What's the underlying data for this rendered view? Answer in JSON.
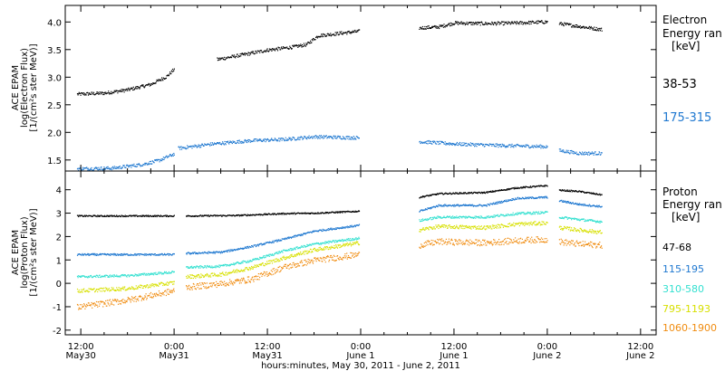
{
  "chart_data": [
    {
      "type": "scatter",
      "panel": "electron",
      "ylabel": [
        "ACE EPAM",
        "log(Electron Flux)",
        "[1/(cm²s ster MeV)]"
      ],
      "ylim": [
        1.3,
        4.3
      ],
      "yticks": [
        "1.5",
        "2.0",
        "2.5",
        "3.0",
        "3.5",
        "4.0"
      ],
      "ytick_values": [
        1.5,
        2.0,
        2.5,
        3.0,
        3.5,
        4.0
      ],
      "legend_title": [
        "Electron",
        "Energy ran",
        "[keV]"
      ],
      "grid": false,
      "legend_position": "right",
      "series": [
        {
          "name": "38-53",
          "color": "#000000",
          "noise": 0.03,
          "segments": [
            [
              [
                -12.5,
                2.7
              ],
              [
                -9,
                2.72
              ],
              [
                -6,
                2.78
              ],
              [
                -3,
                2.88
              ],
              [
                -1,
                3.02
              ],
              [
                0,
                3.16
              ]
            ],
            [
              [
                5.5,
                3.33
              ],
              [
                9,
                3.42
              ],
              [
                12,
                3.5
              ],
              [
                15,
                3.55
              ],
              [
                17,
                3.6
              ],
              [
                18.5,
                3.76
              ],
              [
                21,
                3.8
              ],
              [
                23.8,
                3.84
              ]
            ],
            [
              [
                31.5,
                3.9
              ],
              [
                34,
                3.92
              ],
              [
                36,
                3.99
              ],
              [
                40,
                3.98
              ],
              [
                44,
                3.99
              ],
              [
                48,
                4.01
              ]
            ],
            [
              [
                49.5,
                3.98
              ],
              [
                52,
                3.93
              ],
              [
                55,
                3.87
              ]
            ]
          ]
        },
        {
          "name": "175-315",
          "color": "#1f78d0",
          "noise": 0.03,
          "segments": [
            [
              [
                -12.5,
                1.35
              ],
              [
                -8,
                1.36
              ],
              [
                -4,
                1.43
              ],
              [
                -2,
                1.5
              ],
              [
                0,
                1.62
              ]
            ],
            [
              [
                0.5,
                1.72
              ],
              [
                5,
                1.8
              ],
              [
                10,
                1.86
              ],
              [
                14,
                1.88
              ],
              [
                18,
                1.93
              ],
              [
                23.8,
                1.91
              ]
            ],
            [
              [
                31.5,
                1.84
              ],
              [
                36,
                1.8
              ],
              [
                42,
                1.77
              ],
              [
                48,
                1.75
              ]
            ],
            [
              [
                49.5,
                1.68
              ],
              [
                52,
                1.63
              ],
              [
                55,
                1.63
              ]
            ]
          ]
        }
      ]
    },
    {
      "type": "scatter",
      "panel": "proton",
      "ylabel": [
        "ACE EPAM",
        "log(Proton Flux)",
        "[1/(cm²s ster MeV)]"
      ],
      "ylim": [
        -2.2,
        4.8
      ],
      "yticks": [
        "-2",
        "-1",
        "0",
        "1",
        "2",
        "3",
        "4"
      ],
      "ytick_values": [
        -2,
        -1,
        0,
        1,
        2,
        3,
        4
      ],
      "legend_title": [
        "Proton",
        "Energy ran",
        "[keV]"
      ],
      "grid": false,
      "legend_position": "right",
      "series": [
        {
          "name": "47-68",
          "color": "#000000",
          "noise": 0.03,
          "segments": [
            [
              [
                -12.5,
                2.9
              ],
              [
                0,
                2.9
              ]
            ],
            [
              [
                1.5,
                2.9
              ],
              [
                8,
                2.92
              ],
              [
                14,
                3.0
              ],
              [
                18,
                3.02
              ],
              [
                23.8,
                3.1
              ]
            ],
            [
              [
                31.5,
                3.7
              ],
              [
                34,
                3.85
              ],
              [
                40,
                3.9
              ],
              [
                44,
                4.1
              ],
              [
                48,
                4.2
              ]
            ],
            [
              [
                49.5,
                4.0
              ],
              [
                52,
                3.95
              ],
              [
                55,
                3.8
              ]
            ]
          ]
        },
        {
          "name": "115-195",
          "color": "#1f78d0",
          "noise": 0.04,
          "segments": [
            [
              [
                -12.5,
                1.25
              ],
              [
                0,
                1.25
              ]
            ],
            [
              [
                1.5,
                1.3
              ],
              [
                6,
                1.35
              ],
              [
                10,
                1.6
              ],
              [
                14,
                1.9
              ],
              [
                18,
                2.25
              ],
              [
                23.8,
                2.5
              ]
            ],
            [
              [
                31.5,
                3.1
              ],
              [
                34,
                3.35
              ],
              [
                40,
                3.35
              ],
              [
                44,
                3.65
              ],
              [
                48,
                3.7
              ]
            ],
            [
              [
                49.5,
                3.55
              ],
              [
                52,
                3.4
              ],
              [
                55,
                3.3
              ]
            ]
          ]
        },
        {
          "name": "310-580",
          "color": "#33e0d0",
          "noise": 0.05,
          "segments": [
            [
              [
                -12.5,
                0.3
              ],
              [
                -6,
                0.35
              ],
              [
                0,
                0.5
              ]
            ],
            [
              [
                1.5,
                0.7
              ],
              [
                6,
                0.75
              ],
              [
                10,
                1.0
              ],
              [
                14,
                1.4
              ],
              [
                18,
                1.7
              ],
              [
                23.8,
                1.95
              ]
            ],
            [
              [
                31.5,
                2.7
              ],
              [
                34,
                2.85
              ],
              [
                40,
                2.85
              ],
              [
                44,
                3.0
              ],
              [
                48,
                3.05
              ]
            ],
            [
              [
                49.5,
                2.85
              ],
              [
                52,
                2.75
              ],
              [
                55,
                2.65
              ]
            ]
          ]
        },
        {
          "name": "795-1193",
          "color": "#d7e000",
          "noise": 0.08,
          "segments": [
            [
              [
                -12.5,
                -0.3
              ],
              [
                -6,
                -0.2
              ],
              [
                0,
                0.05
              ]
            ],
            [
              [
                1.5,
                0.3
              ],
              [
                6,
                0.4
              ],
              [
                10,
                0.7
              ],
              [
                14,
                1.1
              ],
              [
                18,
                1.45
              ],
              [
                23.8,
                1.75
              ]
            ],
            [
              [
                31.5,
                2.3
              ],
              [
                34,
                2.45
              ],
              [
                40,
                2.4
              ],
              [
                44,
                2.55
              ],
              [
                48,
                2.6
              ]
            ],
            [
              [
                49.5,
                2.4
              ],
              [
                52,
                2.3
              ],
              [
                55,
                2.2
              ]
            ]
          ]
        },
        {
          "name": "1060-1900",
          "color": "#f08c10",
          "noise": 0.13,
          "segments": [
            [
              [
                -12.5,
                -1.0
              ],
              [
                -6,
                -0.7
              ],
              [
                0,
                -0.3
              ]
            ],
            [
              [
                1.5,
                -0.15
              ],
              [
                6,
                0.0
              ],
              [
                10,
                0.2
              ],
              [
                14,
                0.7
              ],
              [
                18,
                1.0
              ],
              [
                23.8,
                1.25
              ]
            ],
            [
              [
                31.5,
                1.65
              ],
              [
                34,
                1.8
              ],
              [
                40,
                1.75
              ],
              [
                44,
                1.85
              ],
              [
                48,
                1.9
              ]
            ],
            [
              [
                49.5,
                1.8
              ],
              [
                52,
                1.7
              ],
              [
                55,
                1.65
              ]
            ]
          ]
        }
      ]
    }
  ],
  "xaxis": {
    "range_hours": [
      -14,
      62
    ],
    "ticks": [
      {
        "hour": -12,
        "label": [
          "12:00",
          "May30"
        ]
      },
      {
        "hour": 0,
        "label": [
          "0:00",
          "May31"
        ]
      },
      {
        "hour": 12,
        "label": [
          "12:00",
          "May31"
        ]
      },
      {
        "hour": 24,
        "label": [
          "0:00",
          "June 1"
        ]
      },
      {
        "hour": 36,
        "label": [
          "12:00",
          "June 1"
        ]
      },
      {
        "hour": 48,
        "label": [
          "0:00",
          "June 2"
        ]
      },
      {
        "hour": 60,
        "label": [
          "12:00",
          "June 2"
        ]
      }
    ],
    "title": "hours:minutes, May 30, 2011 - June  2, 2011"
  }
}
